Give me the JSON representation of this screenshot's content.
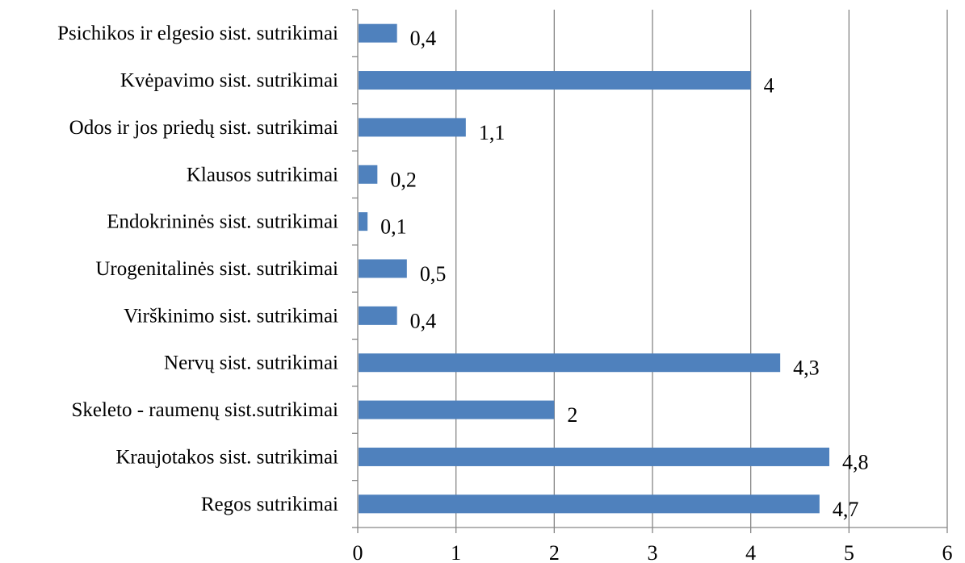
{
  "chart_data": {
    "type": "bar",
    "orientation": "horizontal",
    "categories": [
      "Regos sutrikimai",
      "Kraujotakos sist. sutrikimai",
      "Skeleto - raumenų sist.sutrikimai",
      "Nervų sist. sutrikimai",
      "Virškinimo sist. sutrikimai",
      "Urogenitalinės sist. sutrikimai",
      "Endokrininės sist. sutrikimai",
      "Klausos sutrikimai",
      "Odos ir jos priedų sist. sutrikimai",
      "Kvėpavimo sist. sutrikimai",
      "Psichikos ir elgesio sist. sutrikimai"
    ],
    "values": [
      4.7,
      4.8,
      2,
      4.3,
      0.4,
      0.5,
      0.1,
      0.2,
      1.1,
      4,
      0.4
    ],
    "data_labels": [
      "4,7",
      "4,8",
      "2",
      "4,3",
      "0,4",
      "0,5",
      "0,1",
      "0,2",
      "1,1",
      "4",
      "0,4"
    ],
    "xlim": [
      0,
      6
    ],
    "xticks": [
      "0",
      "1",
      "2",
      "3",
      "4",
      "5",
      "6"
    ],
    "grid": "vertical",
    "legend": "none",
    "title": "",
    "xlabel": "",
    "ylabel": "",
    "bar_color": "#4f81bd",
    "grid_color": "#868686",
    "axis_color": "#868686"
  }
}
